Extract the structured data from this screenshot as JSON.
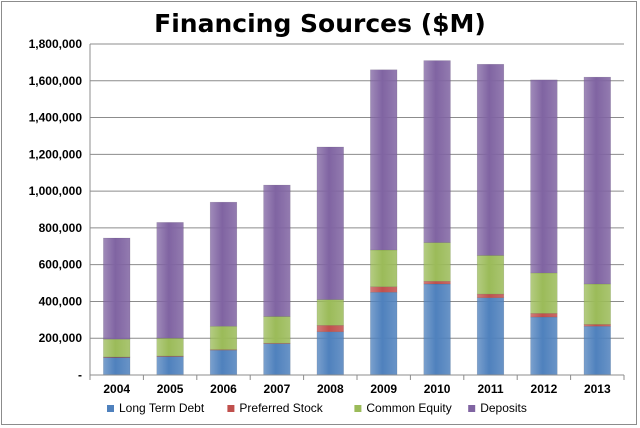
{
  "chart_data": {
    "type": "bar",
    "stacked": true,
    "title": "Financing Sources ($M)",
    "xlabel": "",
    "ylabel": "",
    "categories": [
      "2004",
      "2005",
      "2006",
      "2007",
      "2008",
      "2009",
      "2010",
      "2011",
      "2012",
      "2013"
    ],
    "series": [
      {
        "name": "Long Term Debt",
        "color": "#4f81bd",
        "values": [
          95000,
          100000,
          135000,
          170000,
          235000,
          450000,
          495000,
          420000,
          315000,
          265000
        ]
      },
      {
        "name": "Preferred Stock",
        "color": "#c0504d",
        "values": [
          3000,
          3000,
          3000,
          3000,
          35000,
          30000,
          15000,
          20000,
          20000,
          10000
        ]
      },
      {
        "name": "Common Equity",
        "color": "#9bbb59",
        "values": [
          97000,
          97000,
          127000,
          145000,
          140000,
          200000,
          210000,
          210000,
          220000,
          220000
        ]
      },
      {
        "name": "Deposits",
        "color": "#8064a2",
        "values": [
          550000,
          630000,
          675000,
          715000,
          830000,
          980000,
          990000,
          1040000,
          1050000,
          1125000
        ]
      }
    ],
    "ylim": [
      0,
      1800000
    ],
    "yticks": [
      "-",
      "200,000",
      "400,000",
      "600,000",
      "800,000",
      "1,000,000",
      "1,200,000",
      "1,400,000",
      "1,600,000",
      "1,800,000"
    ],
    "grid": true,
    "legend_position": "bottom"
  }
}
